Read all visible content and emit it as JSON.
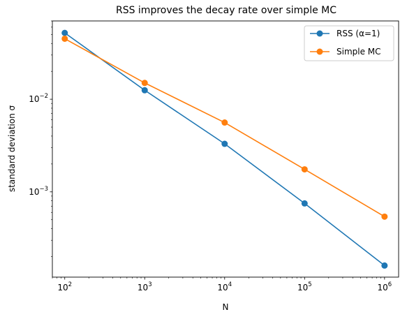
{
  "chart_data": {
    "type": "line",
    "title": "RSS improves the decay rate over simple MC",
    "xlabel": "N",
    "ylabel": "standard deviation σ",
    "xscale": "log",
    "yscale": "log",
    "xlim": [
      70,
      1500000
    ],
    "ylim": [
      0.00012,
      0.07
    ],
    "x": [
      100,
      1000,
      10000,
      100000,
      1000000
    ],
    "x_tick_labels": [
      {
        "base": "10",
        "exp": "2",
        "value": 100
      },
      {
        "base": "10",
        "exp": "3",
        "value": 1000
      },
      {
        "base": "10",
        "exp": "4",
        "value": 10000
      },
      {
        "base": "10",
        "exp": "5",
        "value": 100000
      },
      {
        "base": "10",
        "exp": "6",
        "value": 1000000
      }
    ],
    "y_tick_labels": [
      {
        "base": "10",
        "exp": "−2",
        "value": 0.01
      },
      {
        "base": "10",
        "exp": "−3",
        "value": 0.001
      }
    ],
    "series": [
      {
        "name": "RSS (α=1)",
        "color": "#1f77b4",
        "values": [
          0.052,
          0.0125,
          0.0033,
          0.00075,
          0.00016
        ]
      },
      {
        "name": "Simple MC",
        "color": "#ff7f0e",
        "values": [
          0.045,
          0.015,
          0.0056,
          0.00175,
          0.00054
        ]
      }
    ],
    "legend": "top-right",
    "grid": false
  }
}
